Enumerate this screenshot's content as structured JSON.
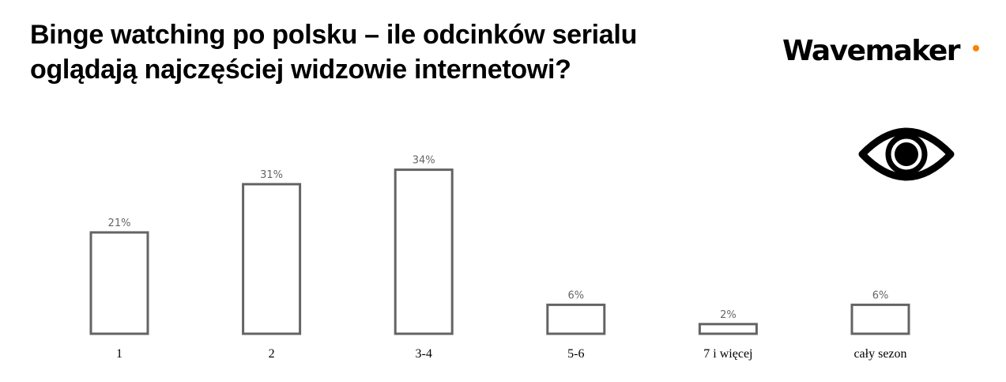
{
  "colors": {
    "bar_stroke": "#646464",
    "label": "#666666",
    "accent": "#ff7f00"
  },
  "logo": {
    "text": "Wavemaker"
  },
  "icons": {
    "decor": "eye-icon"
  },
  "chart_data": {
    "type": "bar",
    "title": "Binge watching po polsku – ile odcinków serialu oglądają najczęściej widzowie internetowi?",
    "categories": [
      "1",
      "2",
      "3-4",
      "5-6",
      "7 i więcej",
      "cały sezon"
    ],
    "values": [
      21,
      31,
      34,
      6,
      2,
      6
    ],
    "data_labels": [
      "21%",
      "31%",
      "34%",
      "6%",
      "2%",
      "6%"
    ],
    "xlabel": "",
    "ylabel": "",
    "ylim": [
      0,
      34
    ],
    "grid": false,
    "style": "outlined bars"
  }
}
